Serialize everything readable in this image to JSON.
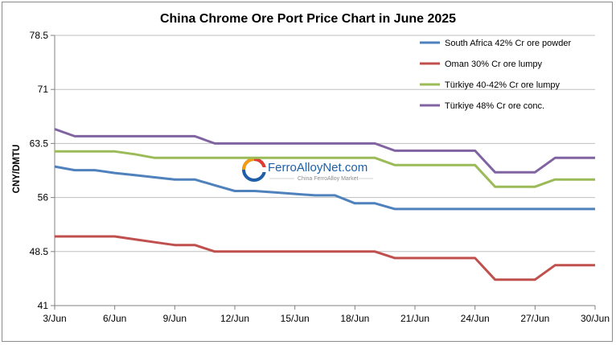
{
  "chart_data": {
    "type": "line",
    "title": "China Chrome Ore Port Price Chart in June 2025",
    "xlabel": "",
    "ylabel": "CNY/DMTU",
    "ylim": [
      41,
      78.5
    ],
    "yticks": [
      "78.5",
      "71",
      "63.5",
      "56",
      "48.5",
      "41"
    ],
    "xtick_labels": [
      "3/Jun",
      "6/Jun",
      "9/Jun",
      "12/Jun",
      "15/Jun",
      "18/Jun",
      "21/Jun",
      "24/Jun",
      "27/Jun",
      "30/Jun"
    ],
    "x": [
      3,
      4,
      5,
      6,
      7,
      8,
      9,
      10,
      11,
      12,
      13,
      14,
      15,
      16,
      17,
      18,
      19,
      20,
      21,
      22,
      23,
      24,
      25,
      26,
      27,
      28,
      29,
      30
    ],
    "grid": "horizontal",
    "legend_position": "top-right",
    "series": [
      {
        "name": "South Africa 42% Cr ore powder",
        "color": "#4f81bd",
        "values": [
          60.3,
          59.8,
          59.8,
          59.4,
          59.1,
          58.8,
          58.5,
          58.5,
          57.7,
          56.9,
          56.9,
          56.7,
          56.5,
          56.3,
          56.3,
          55.2,
          55.2,
          54.4,
          54.4,
          54.4,
          54.4,
          54.4,
          54.4,
          54.4,
          54.4,
          54.4,
          54.4,
          54.4
        ]
      },
      {
        "name": "Oman 30% Cr ore lumpy",
        "color": "#c0504d",
        "values": [
          50.6,
          50.6,
          50.6,
          50.6,
          50.2,
          49.8,
          49.4,
          49.4,
          48.5,
          48.5,
          48.5,
          48.5,
          48.5,
          48.5,
          48.5,
          48.5,
          48.5,
          47.6,
          47.6,
          47.6,
          47.6,
          47.6,
          44.6,
          44.6,
          44.6,
          46.6,
          46.6,
          46.6
        ]
      },
      {
        "name": "Türkiye 40-42% Cr ore lumpy",
        "color": "#9bbb59",
        "values": [
          62.4,
          62.4,
          62.4,
          62.4,
          62.0,
          61.5,
          61.5,
          61.5,
          61.5,
          61.5,
          61.5,
          61.5,
          61.5,
          61.5,
          61.5,
          61.5,
          61.5,
          60.5,
          60.5,
          60.5,
          60.5,
          60.5,
          57.5,
          57.5,
          57.5,
          58.5,
          58.5,
          58.5
        ]
      },
      {
        "name": "Türkiye 48% Cr ore conc.",
        "color": "#8064a2",
        "values": [
          65.5,
          64.5,
          64.5,
          64.5,
          64.5,
          64.5,
          64.5,
          64.5,
          63.5,
          63.5,
          63.5,
          63.5,
          63.5,
          63.5,
          63.5,
          63.5,
          63.5,
          62.5,
          62.5,
          62.5,
          62.5,
          62.5,
          59.5,
          59.5,
          59.5,
          61.5,
          61.5,
          61.5
        ]
      }
    ]
  },
  "watermark": {
    "brand": "FerroAlloyNet.com",
    "tagline": "China FerroAlloy Market"
  }
}
